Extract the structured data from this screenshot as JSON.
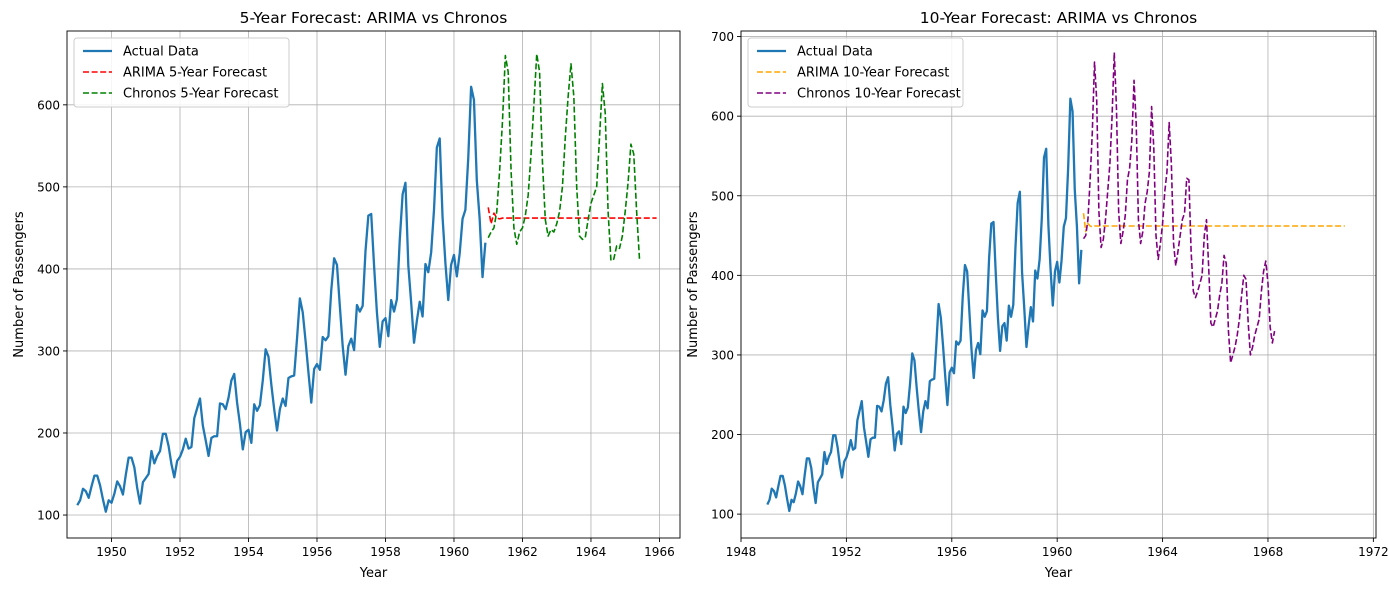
{
  "chart_data": [
    {
      "type": "line",
      "title": "5-Year Forecast: ARIMA vs Chronos",
      "xlabel": "Year",
      "ylabel": "Number of Passengers",
      "xlim": [
        1948.7,
        1966.6
      ],
      "ylim": [
        72,
        690
      ],
      "xticks": [
        1950,
        1952,
        1954,
        1956,
        1958,
        1960,
        1962,
        1964,
        1966
      ],
      "yticks": [
        100,
        200,
        300,
        400,
        500,
        600
      ],
      "grid": true,
      "legend": "top-left",
      "series": [
        {
          "name": "Actual Data",
          "color": "#1f77b4",
          "style": "solid",
          "x_start": 1949.0,
          "x_step": 0.0833333,
          "values": [
            112,
            118,
            132,
            129,
            121,
            135,
            148,
            148,
            136,
            119,
            104,
            118,
            115,
            126,
            141,
            135,
            125,
            149,
            170,
            170,
            158,
            133,
            114,
            140,
            145,
            150,
            178,
            163,
            172,
            178,
            199,
            199,
            184,
            162,
            146,
            166,
            171,
            180,
            193,
            181,
            183,
            218,
            230,
            242,
            209,
            191,
            172,
            194,
            196,
            196,
            236,
            235,
            229,
            243,
            264,
            272,
            237,
            211,
            180,
            201,
            204,
            188,
            235,
            227,
            234,
            264,
            302,
            293,
            259,
            229,
            203,
            229,
            242,
            233,
            267,
            269,
            270,
            315,
            364,
            347,
            312,
            274,
            237,
            278,
            284,
            277,
            317,
            313,
            318,
            374,
            413,
            405,
            355,
            306,
            271,
            306,
            315,
            301,
            356,
            348,
            355,
            422,
            465,
            467,
            404,
            347,
            305,
            336,
            340,
            318,
            362,
            348,
            363,
            435,
            491,
            505,
            404,
            359,
            310,
            337,
            360,
            342,
            406,
            396,
            420,
            472,
            548,
            559,
            463,
            407,
            362,
            405,
            417,
            391,
            419,
            461,
            472,
            535,
            622,
            606,
            508,
            461,
            390,
            432
          ]
        },
        {
          "name": "ARIMA 5-Year Forecast",
          "color": "#ff0000",
          "style": "dashed",
          "x_start": 1961.0,
          "x_step": 0.0833333,
          "values": [
            475,
            455,
            468,
            462,
            461,
            462,
            462,
            462,
            462,
            462,
            462,
            462,
            462,
            462,
            462,
            462,
            462,
            462,
            462,
            462,
            462,
            462,
            462,
            462,
            462,
            462,
            462,
            462,
            462,
            462,
            462,
            462,
            462,
            462,
            462,
            462,
            462,
            462,
            462,
            462,
            462,
            462,
            462,
            462,
            462,
            462,
            462,
            462,
            462,
            462,
            462,
            462,
            462,
            462,
            462,
            462,
            462,
            462,
            462,
            462
          ]
        },
        {
          "name": "Chronos 5-Year Forecast",
          "color": "#008000",
          "style": "dashed",
          "x_start": 1961.0,
          "x_step": 0.0833333,
          "values": [
            438,
            445,
            450,
            470,
            520,
            580,
            660,
            640,
            520,
            450,
            430,
            445,
            450,
            465,
            490,
            540,
            600,
            662,
            640,
            530,
            460,
            440,
            448,
            445,
            455,
            470,
            500,
            560,
            610,
            650,
            610,
            500,
            440,
            436,
            438,
            460,
            480,
            490,
            500,
            560,
            626,
            590,
            470,
            410,
            412,
            428,
            425,
            440,
            470,
            505,
            552,
            540,
            470,
            412
          ]
        }
      ]
    },
    {
      "type": "line",
      "title": "10-Year Forecast: ARIMA vs Chronos",
      "xlabel": "Year",
      "ylabel": "Number of Passengers",
      "xlim": [
        1948.0,
        1972.1
      ],
      "ylim": [
        70,
        707
      ],
      "xticks": [
        1948,
        1952,
        1956,
        1960,
        1964,
        1968,
        1972
      ],
      "yticks": [
        100,
        200,
        300,
        400,
        500,
        600,
        700
      ],
      "grid": true,
      "legend": "top-left",
      "series": [
        {
          "name": "Actual Data",
          "color": "#1f77b4",
          "style": "solid",
          "x_start": 1949.0,
          "x_step": 0.0833333,
          "values": [
            112,
            118,
            132,
            129,
            121,
            135,
            148,
            148,
            136,
            119,
            104,
            118,
            115,
            126,
            141,
            135,
            125,
            149,
            170,
            170,
            158,
            133,
            114,
            140,
            145,
            150,
            178,
            163,
            172,
            178,
            199,
            199,
            184,
            162,
            146,
            166,
            171,
            180,
            193,
            181,
            183,
            218,
            230,
            242,
            209,
            191,
            172,
            194,
            196,
            196,
            236,
            235,
            229,
            243,
            264,
            272,
            237,
            211,
            180,
            201,
            204,
            188,
            235,
            227,
            234,
            264,
            302,
            293,
            259,
            229,
            203,
            229,
            242,
            233,
            267,
            269,
            270,
            315,
            364,
            347,
            312,
            274,
            237,
            278,
            284,
            277,
            317,
            313,
            318,
            374,
            413,
            405,
            355,
            306,
            271,
            306,
            315,
            301,
            356,
            348,
            355,
            422,
            465,
            467,
            404,
            347,
            305,
            336,
            340,
            318,
            362,
            348,
            363,
            435,
            491,
            505,
            404,
            359,
            310,
            337,
            360,
            342,
            406,
            396,
            420,
            472,
            548,
            559,
            463,
            407,
            362,
            405,
            417,
            391,
            419,
            461,
            472,
            535,
            622,
            606,
            508,
            461,
            390,
            432
          ]
        },
        {
          "name": "ARIMA 10-Year Forecast",
          "color": "#ffa500",
          "style": "dashed",
          "x_start": 1961.0,
          "x_step": 0.0833333,
          "values": [
            478,
            455,
            465,
            462,
            461,
            462,
            462,
            462,
            462,
            462,
            462,
            462,
            462,
            462,
            462,
            462,
            462,
            462,
            462,
            462,
            462,
            462,
            462,
            462,
            462,
            462,
            462,
            462,
            462,
            462,
            462,
            462,
            462,
            462,
            462,
            462,
            462,
            462,
            462,
            462,
            462,
            462,
            462,
            462,
            462,
            462,
            462,
            462,
            462,
            462,
            462,
            462,
            462,
            462,
            462,
            462,
            462,
            462,
            462,
            462,
            462,
            462,
            462,
            462,
            462,
            462,
            462,
            462,
            462,
            462,
            462,
            462,
            462,
            462,
            462,
            462,
            462,
            462,
            462,
            462,
            462,
            462,
            462,
            462,
            462,
            462,
            462,
            462,
            462,
            462,
            462,
            462,
            462,
            462,
            462,
            462,
            462,
            462,
            462,
            462,
            462,
            462,
            462,
            462,
            462,
            462,
            462,
            462,
            462,
            462,
            462,
            462,
            462,
            462,
            462,
            462,
            462,
            462,
            462,
            462
          ]
        },
        {
          "name": "Chronos 10-Year Forecast",
          "color": "#800080",
          "style": "dashed",
          "x_start": 1961.0,
          "x_step": 0.0833333,
          "values": [
            446,
            450,
            470,
            520,
            580,
            668,
            620,
            480,
            435,
            445,
            470,
            505,
            540,
            600,
            680,
            610,
            480,
            440,
            455,
            475,
            520,
            535,
            570,
            645,
            590,
            470,
            440,
            455,
            490,
            505,
            530,
            612,
            560,
            450,
            420,
            440,
            465,
            505,
            530,
            592,
            540,
            440,
            412,
            430,
            450,
            470,
            478,
            522,
            520,
            430,
            380,
            372,
            380,
            390,
            400,
            450,
            470,
            410,
            340,
            335,
            345,
            355,
            375,
            390,
            425,
            415,
            330,
            290,
            300,
            310,
            325,
            345,
            375,
            400,
            395,
            340,
            300,
            310,
            325,
            335,
            345,
            380,
            405,
            418,
            390,
            335,
            315,
            330
          ]
        }
      ]
    }
  ]
}
